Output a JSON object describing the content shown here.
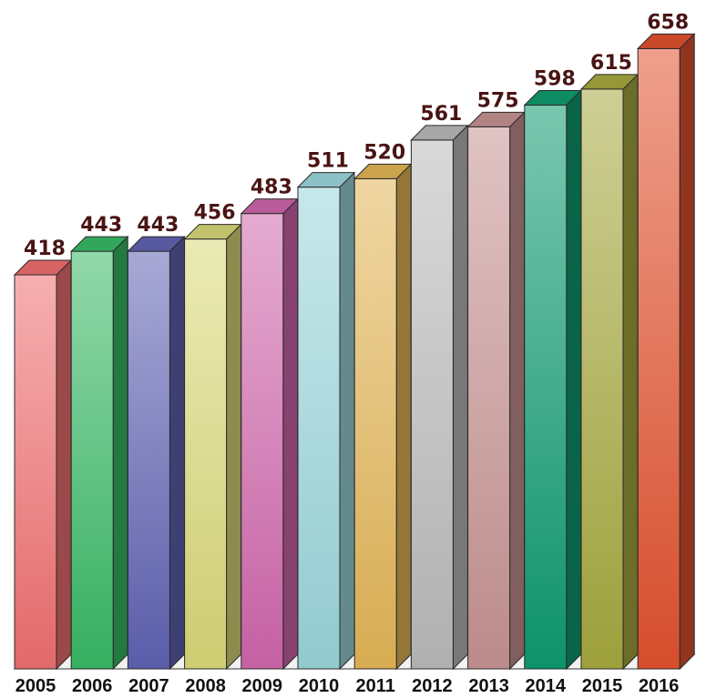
{
  "chart_data": {
    "type": "bar",
    "title": "",
    "xlabel": "",
    "ylabel": "",
    "categories": [
      "2005",
      "2006",
      "2007",
      "2008",
      "2009",
      "2010",
      "2011",
      "2012",
      "2013",
      "2014",
      "2015",
      "2016"
    ],
    "values": [
      418,
      443,
      443,
      456,
      483,
      511,
      520,
      561,
      575,
      598,
      615,
      658
    ],
    "ylim": [
      0,
      700
    ],
    "grid": false,
    "legend": "none",
    "style": "3d",
    "bar_colors": [
      "#ef6e70",
      "#38b865",
      "#5f62b2",
      "#d9d878",
      "#cf66ac",
      "#9ad5da",
      "#e2b556",
      "#b9b9b9",
      "#c69292",
      "#0e9a6e",
      "#a5a83e",
      "#e0512e"
    ]
  }
}
